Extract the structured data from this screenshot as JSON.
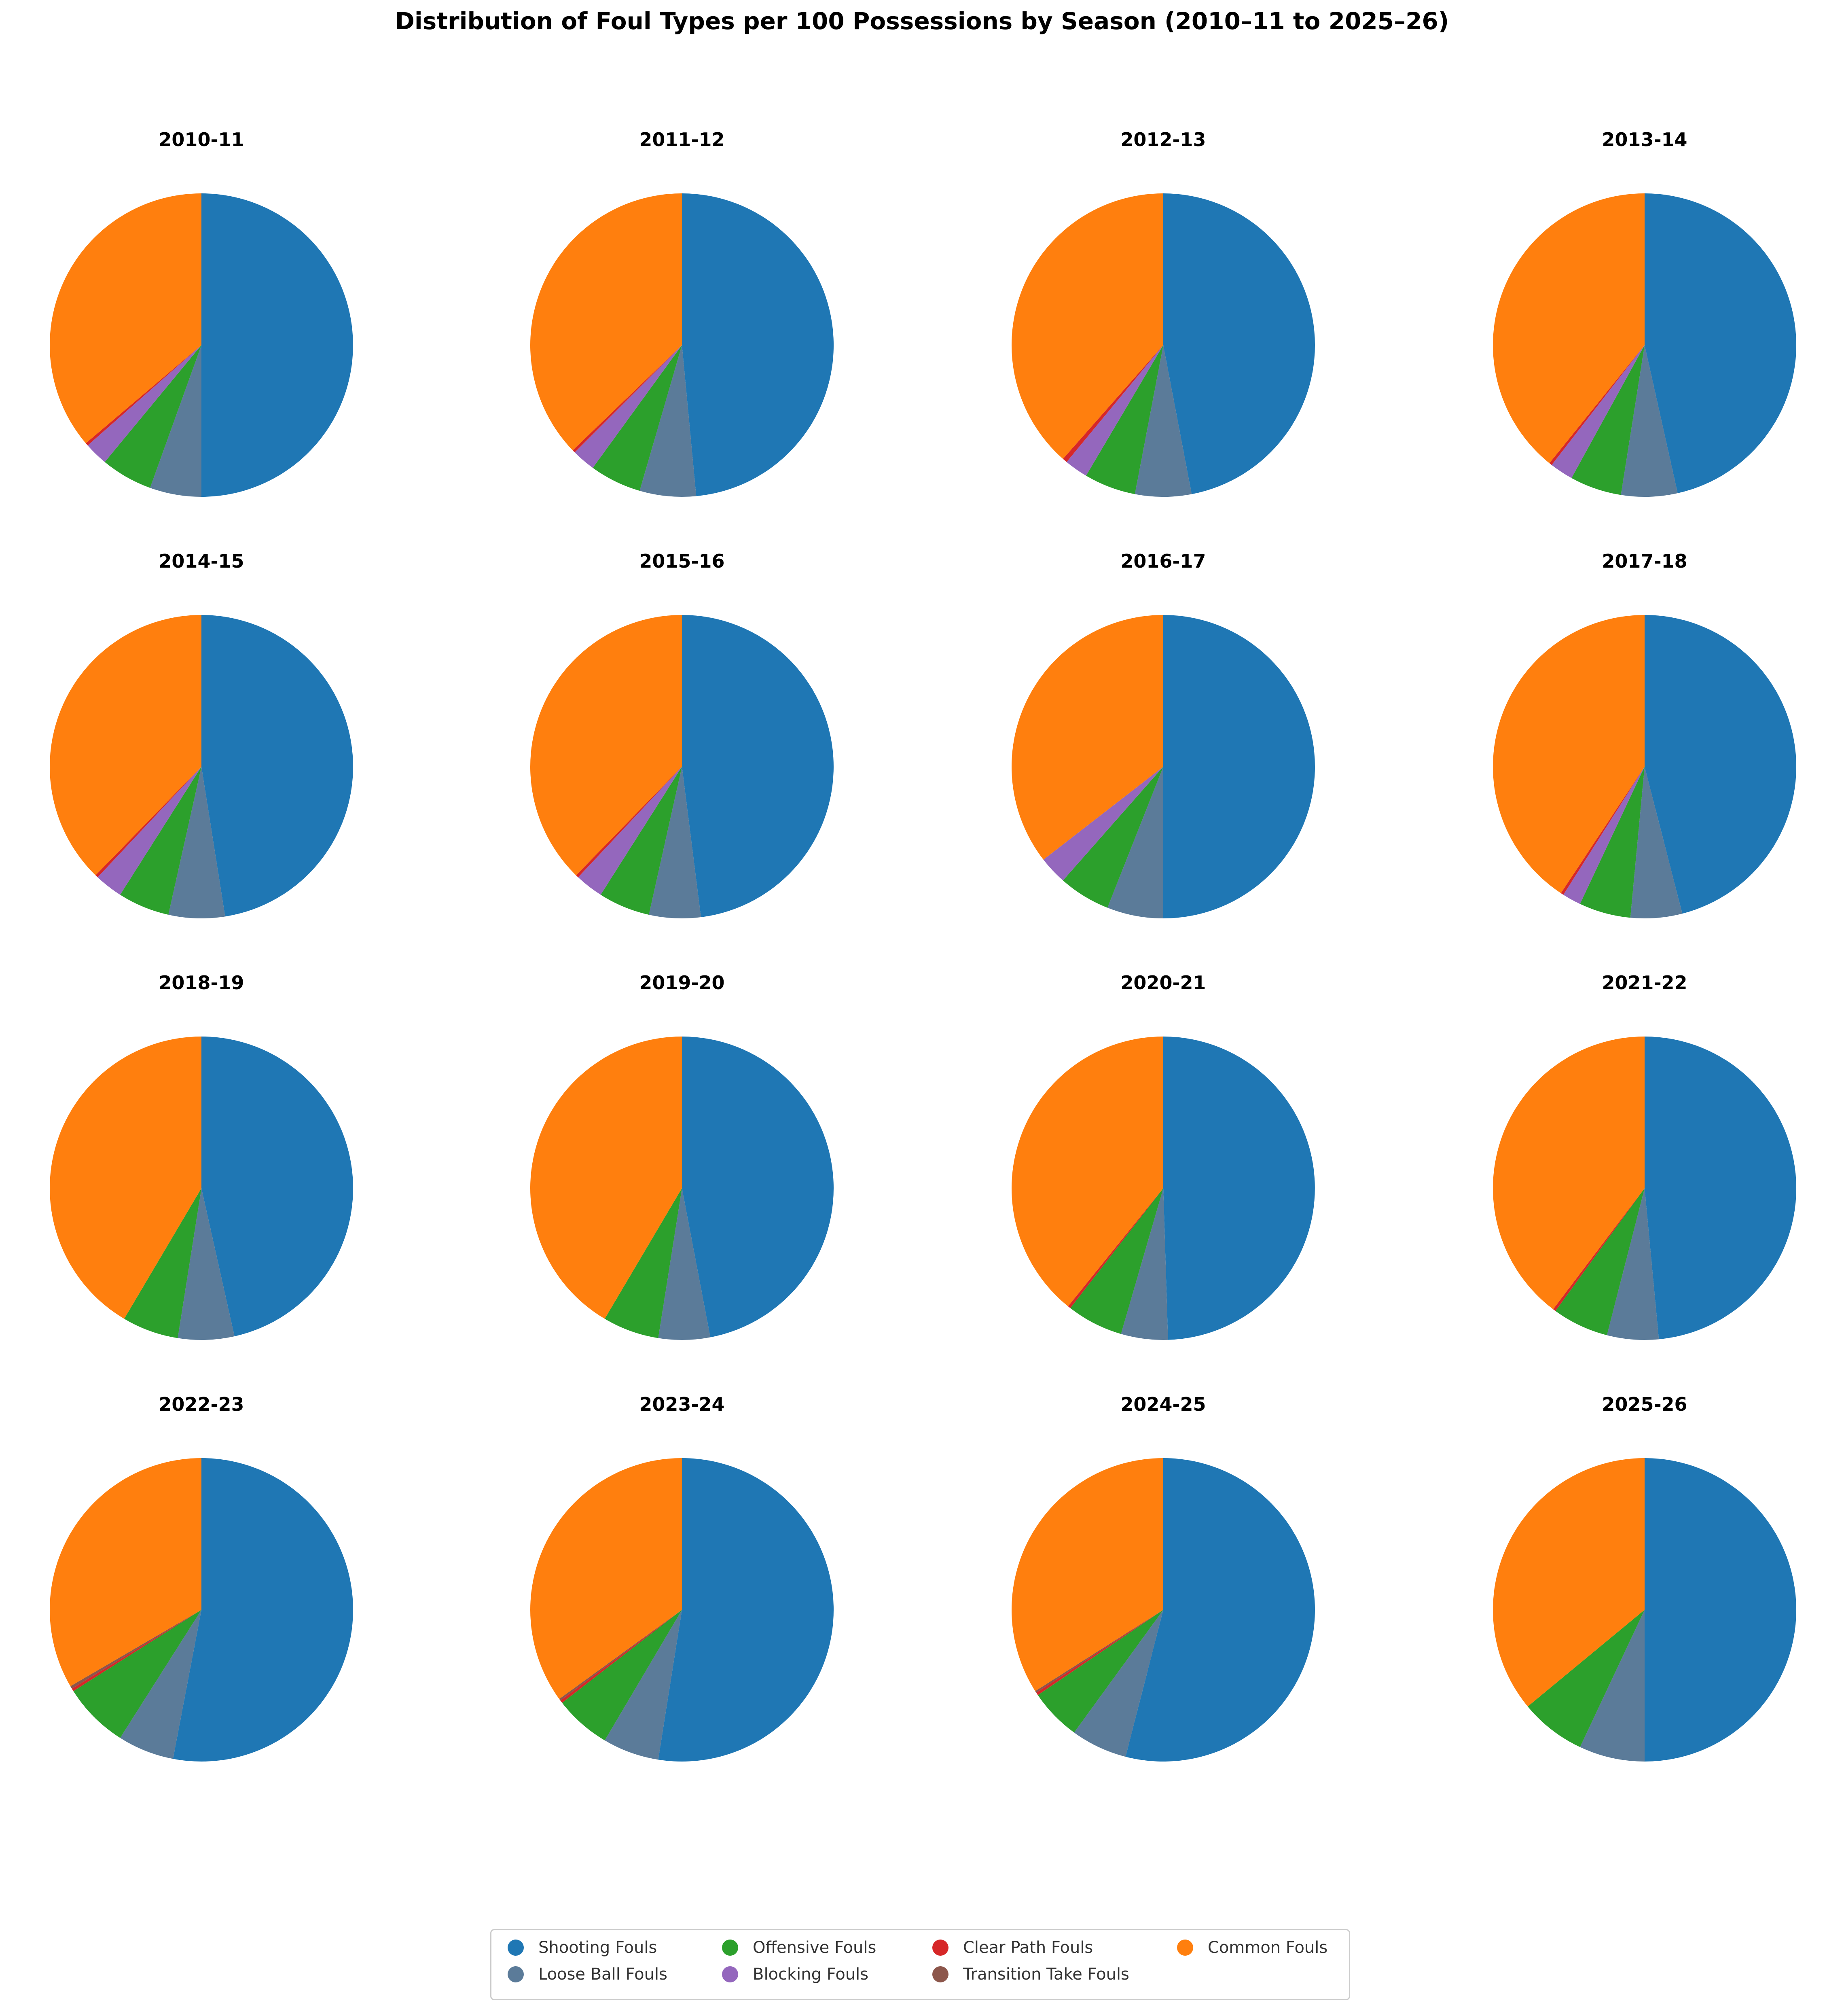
{
  "title": "Distribution of Foul Types per 100 Possessions by Season (2010–11 to 2025–26)",
  "chart_data": {
    "type": "pie",
    "layout": "4x4 grid of pies",
    "categories": [
      "Shooting Fouls",
      "Loose Ball Fouls",
      "Offensive Fouls",
      "Blocking Fouls",
      "Clear Path Fouls",
      "Transition Take Fouls",
      "Common Fouls"
    ],
    "colors": [
      "#1f77b4",
      "#5b7b99",
      "#2ca02c",
      "#9467bd",
      "#d62728",
      "#8c564b",
      "#ff7f0e"
    ],
    "legend_position": "bottom-center",
    "seasons": [
      {
        "name": "2010-11",
        "values": [
          50.0,
          5.5,
          5.5,
          2.5,
          0.3,
          0.0,
          36.2
        ]
      },
      {
        "name": "2011-12",
        "values": [
          48.5,
          6.0,
          5.5,
          2.5,
          0.3,
          0.0,
          37.2
        ]
      },
      {
        "name": "2012-13",
        "values": [
          47.0,
          6.0,
          5.5,
          2.5,
          0.5,
          0.0,
          38.5
        ]
      },
      {
        "name": "2013-14",
        "values": [
          46.5,
          6.0,
          5.5,
          2.5,
          0.3,
          0.0,
          39.2
        ]
      },
      {
        "name": "2014-15",
        "values": [
          47.5,
          6.0,
          5.5,
          3.0,
          0.3,
          0.0,
          37.7
        ]
      },
      {
        "name": "2015-16",
        "values": [
          48.0,
          5.5,
          5.5,
          3.0,
          0.3,
          0.0,
          37.7
        ]
      },
      {
        "name": "2016-17",
        "values": [
          50.0,
          6.0,
          5.5,
          3.0,
          0.0,
          0.0,
          35.5
        ]
      },
      {
        "name": "2017-18",
        "values": [
          46.0,
          5.5,
          5.5,
          2.0,
          0.3,
          0.0,
          40.7
        ]
      },
      {
        "name": "2018-19",
        "values": [
          46.5,
          6.0,
          6.0,
          0.0,
          0.0,
          0.0,
          41.5
        ]
      },
      {
        "name": "2019-20",
        "values": [
          47.0,
          5.5,
          6.0,
          0.0,
          0.0,
          0.0,
          41.5
        ]
      },
      {
        "name": "2020-21",
        "values": [
          49.5,
          5.0,
          6.0,
          0.0,
          0.3,
          0.0,
          39.2
        ]
      },
      {
        "name": "2021-22",
        "values": [
          48.5,
          5.5,
          6.0,
          0.0,
          0.3,
          0.0,
          39.7
        ]
      },
      {
        "name": "2022-23",
        "values": [
          53.0,
          6.0,
          7.0,
          0.0,
          0.3,
          0.3,
          33.4
        ]
      },
      {
        "name": "2023-24",
        "values": [
          52.5,
          6.0,
          6.0,
          0.0,
          0.3,
          0.2,
          35.0
        ]
      },
      {
        "name": "2024-25",
        "values": [
          54.0,
          6.0,
          5.5,
          0.0,
          0.3,
          0.2,
          34.0
        ]
      },
      {
        "name": "2025-26",
        "values": [
          50.0,
          7.0,
          7.0,
          0.0,
          0.0,
          0.0,
          36.0
        ]
      }
    ]
  }
}
